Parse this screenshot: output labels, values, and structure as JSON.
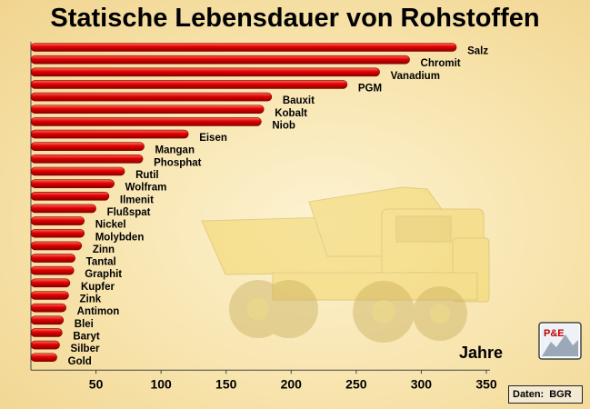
{
  "chart_data": {
    "type": "bar",
    "orientation": "horizontal",
    "title": "Statische Lebensdauer von Rohstoffen",
    "xlabel": "Jahre",
    "xlim": [
      0,
      350
    ],
    "xticks": [
      50,
      100,
      150,
      200,
      250,
      300,
      350
    ],
    "grid": false,
    "bar_color": "#e00000",
    "categories": [
      "Salz",
      "Chromit",
      "Vanadium",
      "PGM",
      "Bauxit",
      "Kobalt",
      "Niob",
      "Eisen",
      "Mangan",
      "Phosphat",
      "Rutil",
      "Wolfram",
      "Ilmenit",
      "Flußspat",
      "Nickel",
      "Molybden",
      "Zinn",
      "Tantal",
      "Graphit",
      "Kupfer",
      "Zink",
      "Antimon",
      "Blei",
      "Baryt",
      "Silber",
      "Gold"
    ],
    "values": [
      327,
      291,
      268,
      243,
      185,
      179,
      177,
      121,
      87,
      86,
      72,
      64,
      60,
      50,
      41,
      41,
      39,
      34,
      33,
      30,
      29,
      27,
      25,
      24,
      22,
      20
    ]
  },
  "source": {
    "label": "Daten:",
    "value": "BGR"
  },
  "logo_text": "P&E"
}
